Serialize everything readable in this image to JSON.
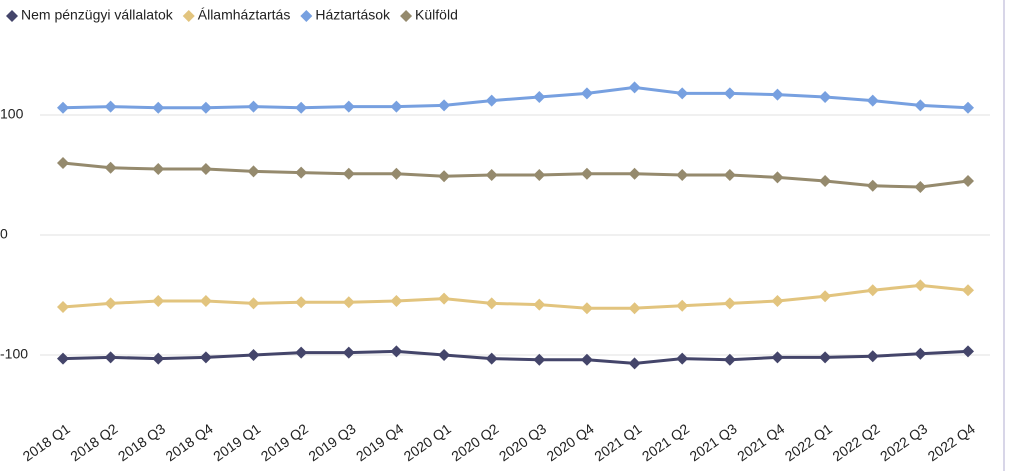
{
  "chart_data": {
    "type": "line",
    "categories": [
      "2018 Q1",
      "2018 Q2",
      "2018 Q3",
      "2018 Q4",
      "2019 Q1",
      "2019 Q2",
      "2019 Q3",
      "2019 Q4",
      "2020 Q1",
      "2020 Q2",
      "2020 Q3",
      "2020 Q4",
      "2021 Q1",
      "2021 Q2",
      "2021 Q3",
      "2021 Q4",
      "2022 Q1",
      "2022 Q2",
      "2022 Q3",
      "2022 Q4"
    ],
    "series": [
      {
        "name": "Nem pénzügyi vállalatok",
        "color": "#44456a",
        "values": [
          -103,
          -102,
          -103,
          -102,
          -100,
          -98,
          -98,
          -97,
          -100,
          -103,
          -104,
          -104,
          -107,
          -103,
          -104,
          -102,
          -102,
          -101,
          -99,
          -97
        ]
      },
      {
        "name": "Államháztartás",
        "color": "#e2c47e",
        "values": [
          -60,
          -57,
          -55,
          -55,
          -57,
          -56,
          -56,
          -55,
          -53,
          -57,
          -58,
          -61,
          -61,
          -59,
          -57,
          -55,
          -51,
          -46,
          -42,
          -46
        ]
      },
      {
        "name": "Háztartások",
        "color": "#77a0e0",
        "values": [
          106,
          107,
          106,
          106,
          107,
          106,
          107,
          107,
          108,
          112,
          115,
          118,
          123,
          118,
          118,
          117,
          115,
          112,
          108,
          106
        ]
      },
      {
        "name": "Külföld",
        "color": "#958a6d",
        "values": [
          60,
          56,
          55,
          55,
          53,
          52,
          51,
          51,
          49,
          50,
          50,
          51,
          51,
          50,
          50,
          48,
          45,
          41,
          40,
          45
        ]
      }
    ],
    "ylim": [
      -150,
      150
    ],
    "yticks": [
      -100,
      0,
      100
    ],
    "grid": true,
    "legend": "top-left"
  }
}
